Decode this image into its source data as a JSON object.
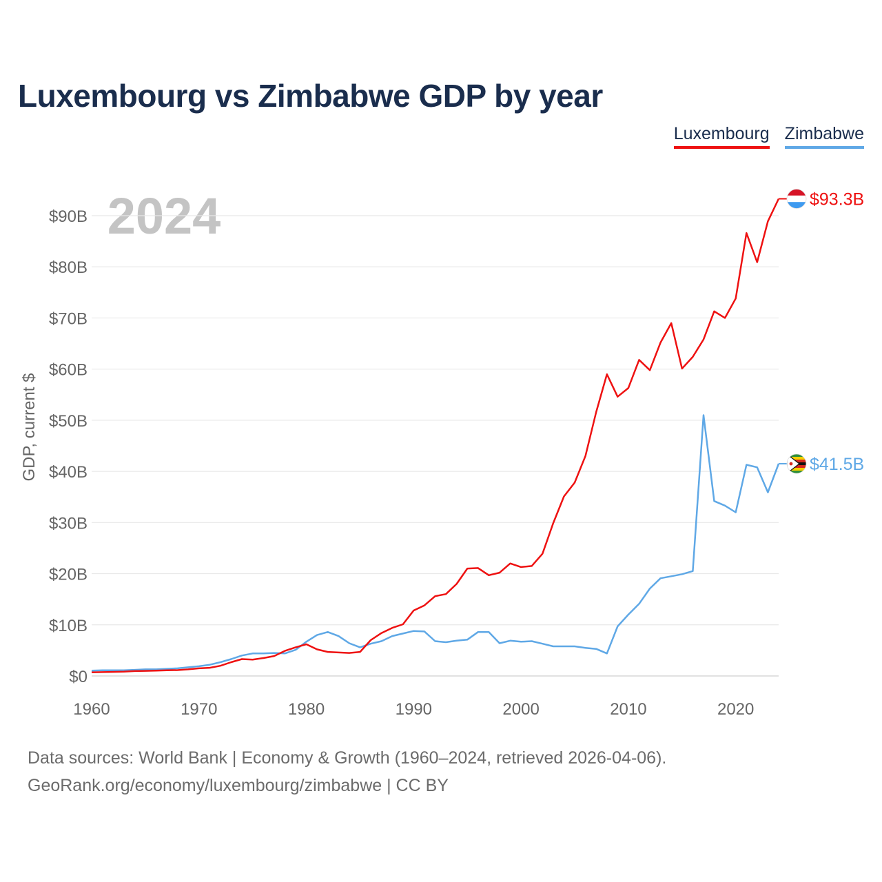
{
  "title": "Luxembourg vs Zimbabwe GDP by year",
  "legend": [
    {
      "label": "Luxembourg",
      "color": "#ee1111"
    },
    {
      "label": "Zimbabwe",
      "color": "#5fa8e6"
    }
  ],
  "footer": {
    "line1": "Data sources: World Bank | Economy & Growth (1960–2024, retrieved 2026-04-06).",
    "line2": "GeoRank.org/economy/luxembourg/zimbabwe | CC BY"
  },
  "chart_data": {
    "type": "line",
    "year_label": "2024",
    "ylabel": "GDP, current $",
    "xlim": [
      1960,
      2024
    ],
    "ylim": [
      0,
      95
    ],
    "x_ticks": [
      1960,
      1970,
      1980,
      1990,
      2000,
      2010,
      2020
    ],
    "x_tick_labels": [
      "1960",
      "1970",
      "1980",
      "1990",
      "2000",
      "2010",
      "2020"
    ],
    "y_ticks": [
      0,
      10,
      20,
      30,
      40,
      50,
      60,
      70,
      80,
      90
    ],
    "y_tick_labels": [
      "$0",
      "$10B",
      "$20B",
      "$30B",
      "$40B",
      "$50B",
      "$60B",
      "$70B",
      "$80B",
      "$90B"
    ],
    "x": [
      1960,
      1961,
      1962,
      1963,
      1964,
      1965,
      1966,
      1967,
      1968,
      1969,
      1970,
      1971,
      1972,
      1973,
      1974,
      1975,
      1976,
      1977,
      1978,
      1979,
      1980,
      1981,
      1982,
      1983,
      1984,
      1985,
      1986,
      1987,
      1988,
      1989,
      1990,
      1991,
      1992,
      1993,
      1994,
      1995,
      1996,
      1997,
      1998,
      1999,
      2000,
      2001,
      2002,
      2003,
      2004,
      2005,
      2006,
      2007,
      2008,
      2009,
      2010,
      2011,
      2012,
      2013,
      2014,
      2015,
      2016,
      2017,
      2018,
      2019,
      2020,
      2021,
      2022,
      2023,
      2024
    ],
    "series": [
      {
        "name": "Luxembourg",
        "color": "#ee1111",
        "end_label": "$93.3B",
        "flag": "luxembourg-flag-icon",
        "values": [
          0.7,
          0.75,
          0.8,
          0.85,
          0.95,
          1.0,
          1.05,
          1.1,
          1.15,
          1.3,
          1.5,
          1.6,
          2.0,
          2.7,
          3.3,
          3.2,
          3.5,
          3.9,
          4.9,
          5.6,
          6.2,
          5.2,
          4.7,
          4.6,
          4.5,
          4.7,
          7.0,
          8.4,
          9.4,
          10.1,
          12.8,
          13.8,
          15.6,
          16.0,
          18.0,
          21.0,
          21.1,
          19.7,
          20.2,
          22.0,
          21.3,
          21.5,
          23.9,
          29.9,
          35.1,
          37.8,
          43.0,
          51.6,
          59.0,
          54.6,
          56.3,
          61.8,
          59.8,
          65.2,
          69.0,
          60.1,
          62.4,
          65.8,
          71.3,
          70.0,
          73.8,
          86.6,
          80.9,
          88.9,
          93.3
        ]
      },
      {
        "name": "Zimbabwe",
        "color": "#5fa8e6",
        "end_label": "$41.5B",
        "flag": "zimbabwe-flag-icon",
        "values": [
          1.05,
          1.1,
          1.1,
          1.1,
          1.2,
          1.3,
          1.3,
          1.4,
          1.5,
          1.7,
          1.9,
          2.2,
          2.7,
          3.3,
          4.0,
          4.4,
          4.4,
          4.5,
          4.4,
          5.1,
          6.7,
          8.0,
          8.6,
          7.8,
          6.4,
          5.6,
          6.3,
          6.8,
          7.8,
          8.3,
          8.8,
          8.7,
          6.8,
          6.6,
          6.9,
          7.1,
          8.6,
          8.6,
          6.4,
          6.9,
          6.7,
          6.8,
          6.3,
          5.8,
          5.8,
          5.8,
          5.5,
          5.3,
          4.4,
          9.7,
          12.0,
          14.1,
          17.1,
          19.1,
          19.5,
          19.9,
          20.5,
          51.0,
          34.2,
          33.3,
          32.0,
          41.3,
          40.8,
          35.9,
          41.5
        ]
      }
    ]
  }
}
